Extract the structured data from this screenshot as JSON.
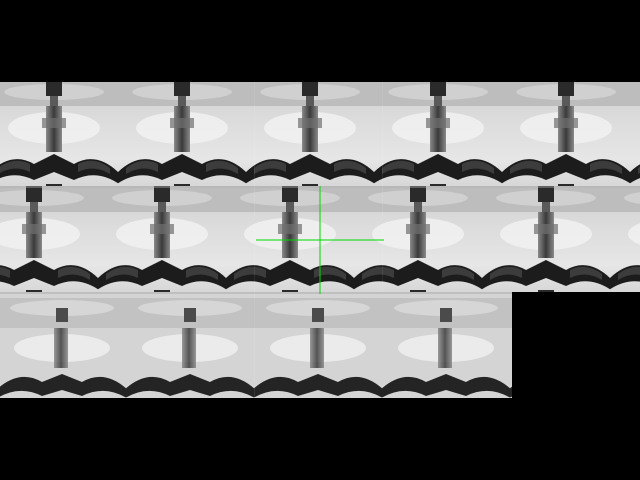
{
  "viewer": {
    "background_color": "#000000",
    "crosshair_color": "#00d800",
    "icons": {
      "crosshair": "crosshair-icon"
    }
  }
}
